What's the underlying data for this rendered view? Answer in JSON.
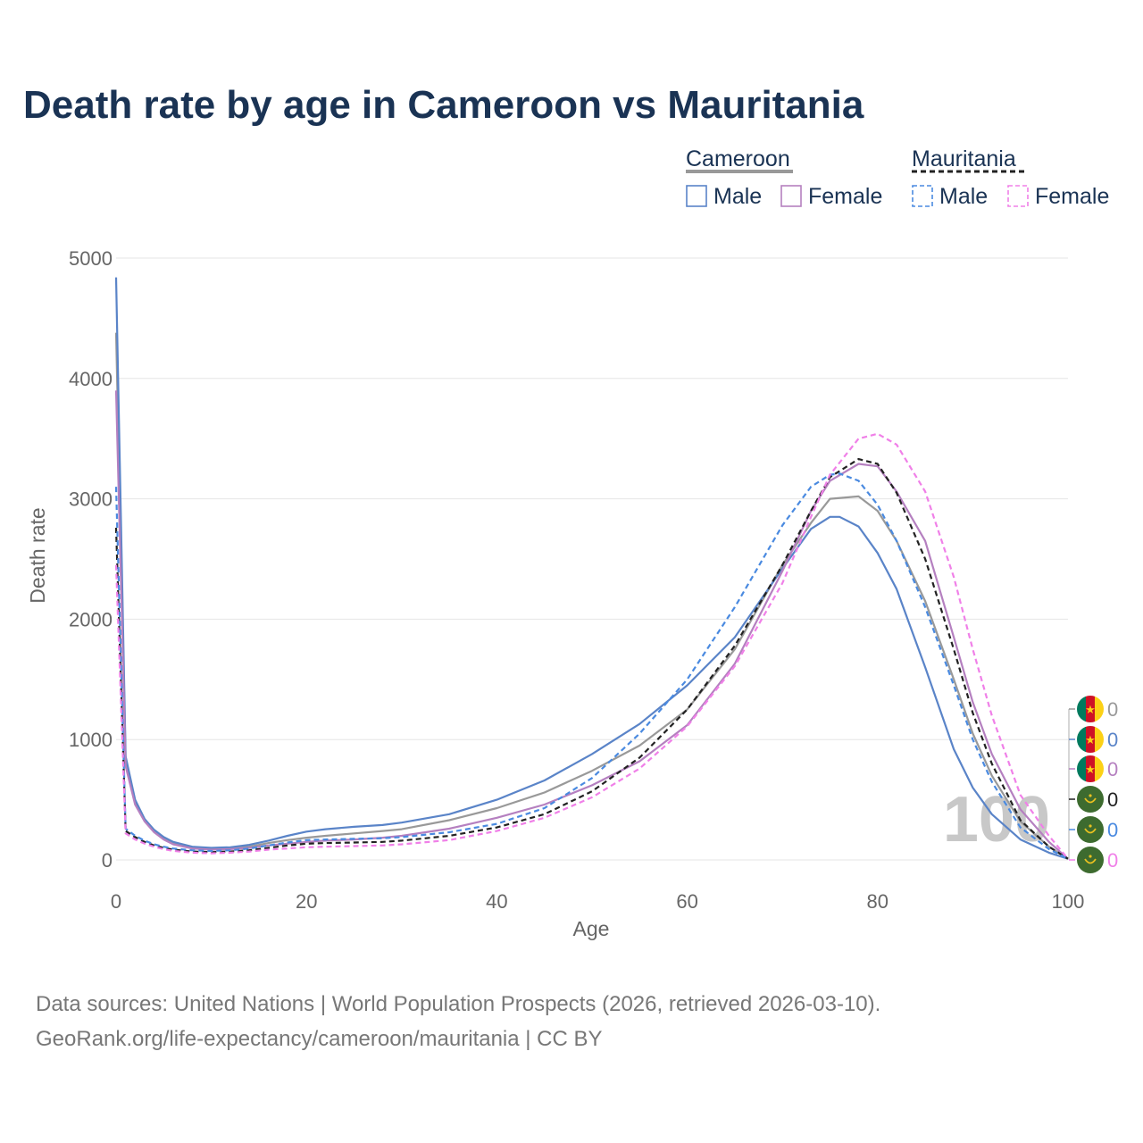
{
  "chart_data": {
    "type": "line",
    "title": "Death rate by age in Cameroon vs Mauritania",
    "xlabel": "Age",
    "ylabel": "Death rate",
    "xlim": [
      0,
      100
    ],
    "ylim": [
      0,
      5000
    ],
    "xticks": [
      "0",
      "20",
      "40",
      "60",
      "80",
      "100"
    ],
    "yticks": [
      "0",
      "1000",
      "2000",
      "3000",
      "4000",
      "5000"
    ],
    "legend": {
      "groups": [
        {
          "country": "Cameroon",
          "style": "solid",
          "entries": [
            "Male",
            "Female"
          ]
        },
        {
          "country": "Mauritania",
          "style": "dashed",
          "entries": [
            "Male",
            "Female"
          ]
        }
      ]
    },
    "age_label": "100",
    "series": [
      {
        "name": "Cameroon Total",
        "country": "Cameroon",
        "sex": "Total",
        "color": "#999999",
        "dash": false,
        "end_value": "0",
        "x": [
          0,
          1,
          2,
          3,
          4,
          5,
          6,
          8,
          10,
          12,
          14,
          16,
          18,
          20,
          22,
          25,
          28,
          30,
          35,
          40,
          45,
          50,
          55,
          60,
          65,
          70,
          73,
          75,
          78,
          80,
          82,
          85,
          88,
          90,
          92,
          95,
          98,
          100
        ],
        "y": [
          4380,
          820,
          480,
          330,
          240,
          180,
          140,
          100,
          90,
          95,
          110,
          140,
          165,
          185,
          200,
          220,
          240,
          255,
          330,
          430,
          560,
          740,
          950,
          1250,
          1750,
          2450,
          2800,
          3000,
          3020,
          2900,
          2650,
          2150,
          1500,
          1050,
          700,
          320,
          110,
          10
        ]
      },
      {
        "name": "Cameroon Male",
        "country": "Cameroon",
        "sex": "Male",
        "color": "#5a84c8",
        "dash": false,
        "end_value": "0",
        "x": [
          0,
          1,
          2,
          3,
          4,
          5,
          6,
          8,
          10,
          12,
          14,
          16,
          18,
          20,
          22,
          25,
          28,
          30,
          35,
          40,
          45,
          50,
          55,
          60,
          65,
          70,
          73,
          75,
          76,
          78,
          80,
          82,
          85,
          88,
          90,
          92,
          95,
          98,
          100
        ],
        "y": [
          4840,
          860,
          500,
          340,
          250,
          190,
          150,
          110,
          100,
          105,
          125,
          160,
          200,
          235,
          255,
          275,
          290,
          310,
          380,
          500,
          660,
          880,
          1130,
          1450,
          1850,
          2420,
          2750,
          2850,
          2850,
          2770,
          2550,
          2250,
          1600,
          920,
          600,
          380,
          170,
          60,
          10
        ]
      },
      {
        "name": "Cameroon Female",
        "country": "Cameroon",
        "sex": "Female",
        "color": "#b580c0",
        "dash": false,
        "end_value": "0",
        "x": [
          0,
          1,
          2,
          3,
          4,
          5,
          6,
          8,
          10,
          12,
          14,
          16,
          18,
          20,
          22,
          25,
          28,
          30,
          35,
          40,
          45,
          50,
          55,
          60,
          65,
          70,
          73,
          75,
          78,
          80,
          82,
          85,
          88,
          90,
          92,
          95,
          98,
          100
        ],
        "y": [
          3900,
          780,
          460,
          320,
          230,
          170,
          130,
          95,
          85,
          90,
          100,
          120,
          135,
          150,
          160,
          170,
          185,
          200,
          260,
          350,
          460,
          620,
          820,
          1120,
          1630,
          2400,
          2900,
          3150,
          3290,
          3270,
          3060,
          2650,
          1850,
          1310,
          880,
          420,
          150,
          10
        ]
      },
      {
        "name": "Mauritania Total",
        "country": "Mauritania",
        "sex": "Total",
        "color": "#222222",
        "dash": true,
        "end_value": "0",
        "x": [
          0,
          1,
          2,
          3,
          4,
          5,
          6,
          8,
          10,
          12,
          14,
          16,
          18,
          20,
          22,
          25,
          28,
          30,
          35,
          40,
          45,
          50,
          55,
          60,
          65,
          70,
          73,
          75,
          78,
          80,
          82,
          85,
          88,
          90,
          92,
          95,
          98,
          100
        ],
        "y": [
          2760,
          240,
          190,
          150,
          120,
          100,
          85,
          70,
          65,
          70,
          80,
          100,
          120,
          135,
          140,
          145,
          150,
          160,
          200,
          270,
          380,
          570,
          850,
          1250,
          1780,
          2450,
          2900,
          3180,
          3330,
          3290,
          3050,
          2500,
          1750,
          1220,
          800,
          330,
          110,
          10
        ]
      },
      {
        "name": "Mauritania Male",
        "country": "Mauritania",
        "sex": "Male",
        "color": "#4a8ae0",
        "dash": true,
        "end_value": "0",
        "x": [
          0,
          1,
          2,
          3,
          4,
          5,
          6,
          8,
          10,
          12,
          14,
          16,
          18,
          20,
          22,
          25,
          28,
          30,
          35,
          40,
          45,
          50,
          55,
          60,
          65,
          70,
          73,
          75,
          76,
          78,
          80,
          82,
          85,
          88,
          90,
          92,
          95,
          98,
          100
        ],
        "y": [
          3100,
          260,
          200,
          160,
          130,
          110,
          95,
          80,
          75,
          80,
          95,
          120,
          145,
          165,
          170,
          175,
          180,
          190,
          230,
          300,
          430,
          680,
          1050,
          1500,
          2100,
          2780,
          3100,
          3200,
          3210,
          3150,
          2950,
          2650,
          2100,
          1450,
          1000,
          650,
          270,
          90,
          10
        ]
      },
      {
        "name": "Mauritania Female",
        "country": "Mauritania",
        "sex": "Female",
        "color": "#f080e8",
        "dash": true,
        "end_value": "0",
        "x": [
          0,
          1,
          2,
          3,
          4,
          5,
          6,
          8,
          10,
          12,
          14,
          16,
          18,
          20,
          22,
          25,
          28,
          30,
          35,
          40,
          45,
          50,
          55,
          60,
          65,
          70,
          73,
          75,
          78,
          80,
          82,
          85,
          88,
          90,
          92,
          95,
          98,
          100
        ],
        "y": [
          2450,
          220,
          170,
          135,
          110,
          90,
          75,
          60,
          55,
          60,
          70,
          85,
          95,
          105,
          110,
          115,
          120,
          130,
          165,
          240,
          350,
          520,
          760,
          1110,
          1610,
          2300,
          2850,
          3200,
          3500,
          3540,
          3450,
          3060,
          2350,
          1750,
          1200,
          540,
          200,
          10
        ]
      }
    ],
    "footer": [
      "Data sources: United Nations | World Population Prospects (2026, retrieved 2026-03-10).",
      "GeoRank.org/life-expectancy/cameroon/mauritania | CC BY"
    ]
  }
}
